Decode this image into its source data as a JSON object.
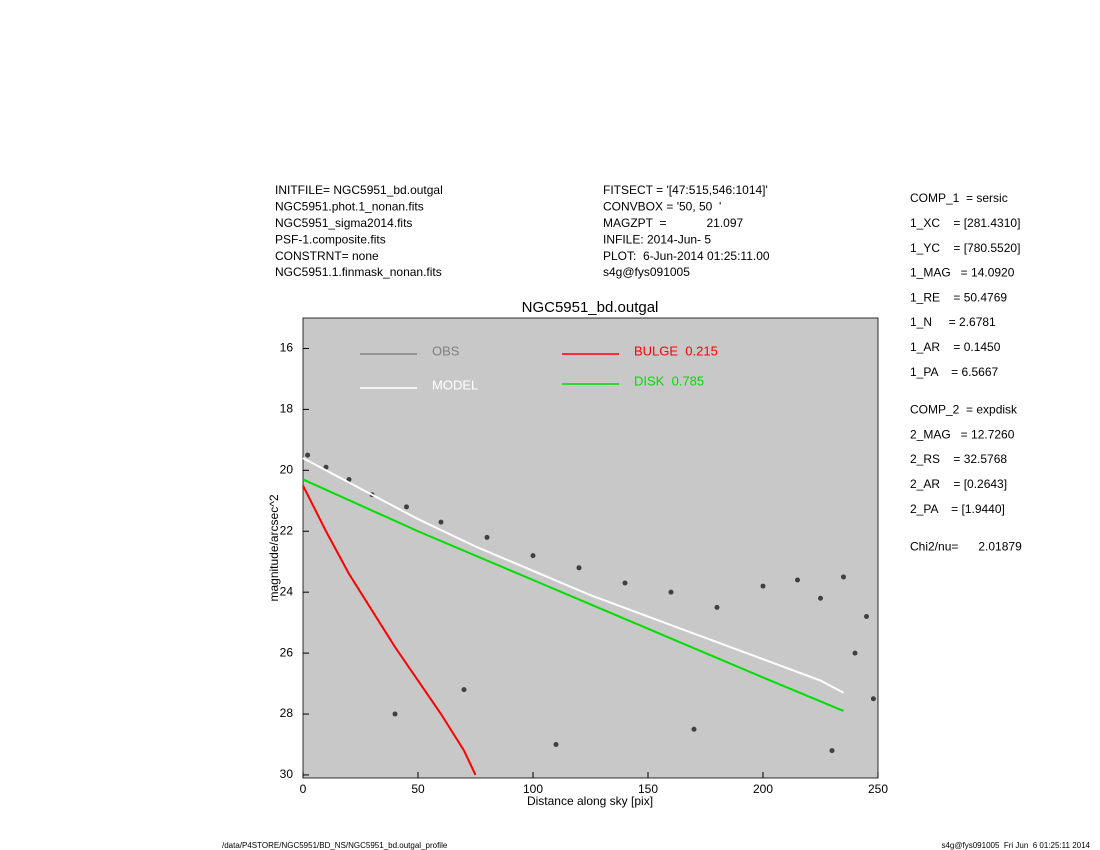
{
  "header": {
    "left": [
      "INITFILE= NGC5951_bd.outgal",
      "NGC5951.phot.1_nonan.fits",
      "NGC5951_sigma2014.fits",
      "PSF-1.composite.fits",
      "CONSTRNT= none",
      "NGC5951.1.finmask_nonan.fits"
    ],
    "middle": [
      "FITSECT = '[47:515,546:1014]'",
      "CONVBOX = '50, 50  '",
      "MAGZPT  =            21.097",
      "INFILE: 2014-Jun- 5",
      "PLOT:  6-Jun-2014 01:25:11.00",
      "s4g@fys091005"
    ],
    "right": [
      [
        "COMP_1  = sersic",
        "1_XC    = [281.4310]",
        "1_YC    = [780.5520]",
        "1_MAG   = 14.0920",
        "1_RE    = 50.4769",
        "1_N     = 2.6781",
        "1_AR    = 0.1450",
        "1_PA    = 6.5667"
      ],
      [
        "COMP_2  = expdisk",
        "2_MAG   = 12.7260",
        "2_RS    = 32.5768",
        "2_AR    = [0.2643]",
        "2_PA    = [1.9440]"
      ],
      [
        "Chi2/nu=      2.01879"
      ]
    ]
  },
  "footer": {
    "left": "/data/P4STORE/NGC5951/BD_NS/NGC5951_bd.outgal_profile",
    "right": "s4g@fys091005  Fri Jun  6 01:25:11 2014"
  },
  "chart_data": {
    "type": "scatter",
    "title": "NGC5951_bd.outgal",
    "x_label": "Distance along sky [pix]",
    "y_label": "magnitude/arcsec^2",
    "xlim": [
      0,
      250
    ],
    "xticks": [
      0,
      50,
      100,
      150,
      200,
      250
    ],
    "ylim": [
      15,
      30.1
    ],
    "yticks": [
      16,
      18,
      20,
      22,
      24,
      26,
      28,
      30
    ],
    "y_reversed": true,
    "background": "#c8c8c8",
    "series": [
      {
        "name": "OBS",
        "color": "#808080",
        "point_color": "#404040",
        "mode": "points",
        "x": [
          2,
          10,
          20,
          30,
          45,
          60,
          80,
          100,
          120,
          140,
          160,
          180,
          200,
          215,
          225,
          235,
          245,
          248,
          40,
          70,
          110,
          170,
          230,
          240
        ],
        "values": [
          19.5,
          19.9,
          20.3,
          20.8,
          21.2,
          21.7,
          22.2,
          22.8,
          23.2,
          23.7,
          24.0,
          24.5,
          23.8,
          23.6,
          24.2,
          23.5,
          24.8,
          27.5,
          28.0,
          27.2,
          29.0,
          28.5,
          29.2,
          26.0
        ]
      },
      {
        "name": "MODEL",
        "color": "#ffffff",
        "mode": "line",
        "x": [
          0,
          25,
          50,
          75,
          100,
          125,
          150,
          175,
          200,
          225,
          235
        ],
        "values": [
          19.6,
          20.6,
          21.6,
          22.5,
          23.3,
          24.1,
          24.8,
          25.5,
          26.2,
          26.9,
          27.3
        ]
      },
      {
        "name": "BULGE  0.215",
        "color": "#ff0000",
        "mode": "line",
        "x": [
          0,
          10,
          20,
          30,
          40,
          50,
          60,
          70,
          75
        ],
        "values": [
          20.5,
          22.0,
          23.4,
          24.6,
          25.8,
          26.9,
          28.0,
          29.2,
          30.0
        ]
      },
      {
        "name": "DISK  0.785",
        "color": "#00dd00",
        "mode": "line",
        "x": [
          0,
          50,
          100,
          150,
          200,
          235
        ],
        "values": [
          20.3,
          22.0,
          23.6,
          25.2,
          26.8,
          27.9
        ]
      }
    ]
  }
}
